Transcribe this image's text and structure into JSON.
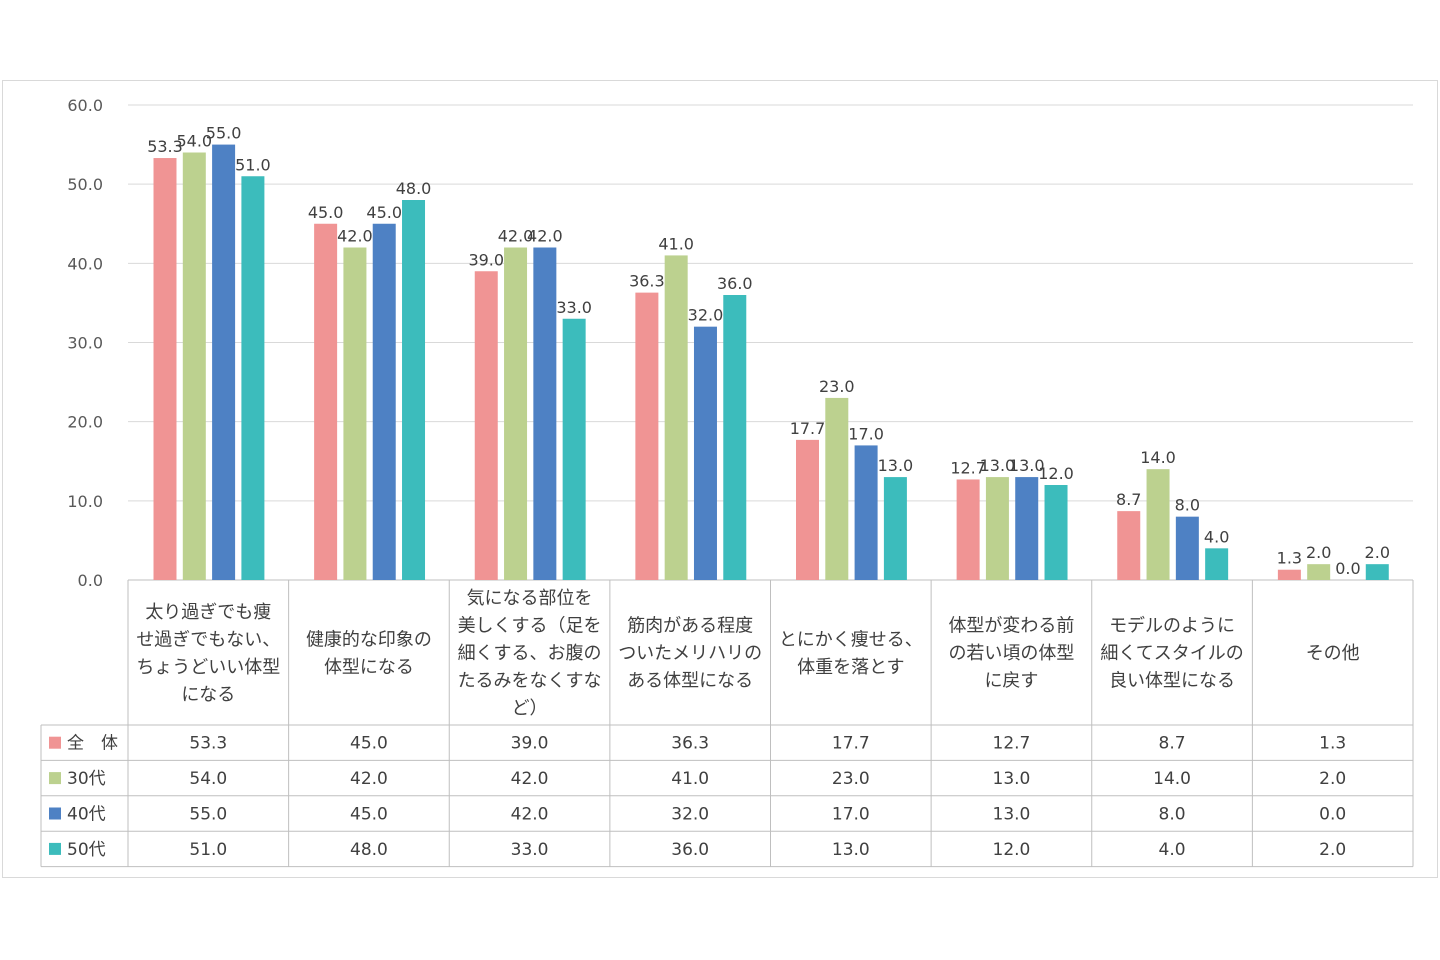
{
  "chart_data": {
    "type": "bar",
    "title": "",
    "xlabel": "",
    "ylabel": "",
    "ylim": [
      0,
      60
    ],
    "yticks": [
      "0.0",
      "10.0",
      "20.0",
      "30.0",
      "40.0",
      "50.0",
      "60.0"
    ],
    "grid": true,
    "legend": "data-table-left",
    "categories": [
      [
        "太り過ぎでも痩",
        "せ過ぎでもない、",
        "ちょうどいい体型",
        "になる"
      ],
      [
        "健康的な印象の",
        "体型になる"
      ],
      [
        "気になる部位を",
        "美しくする（足を",
        "細くする、お腹の",
        "たるみをなくすな",
        "ど）"
      ],
      [
        "筋肉がある程度",
        "ついたメリハリの",
        "ある体型になる"
      ],
      [
        "とにかく痩せる、",
        "体重を落とす"
      ],
      [
        "体型が変わる前",
        "の若い頃の体型",
        "に戻す"
      ],
      [
        "モデルのように",
        "細くてスタイルの",
        "良い体型になる"
      ],
      [
        "その他"
      ]
    ],
    "series": [
      {
        "name": "全　体",
        "color": "#f09494",
        "values": [
          53.3,
          45.0,
          39.0,
          36.3,
          17.7,
          12.7,
          8.7,
          1.3
        ],
        "labels": [
          "53.3",
          "45.0",
          "39.0",
          "36.3",
          "17.7",
          "12.7",
          "8.7",
          "1.3"
        ]
      },
      {
        "name": "30代",
        "color": "#bcd18f",
        "values": [
          54.0,
          42.0,
          42.0,
          41.0,
          23.0,
          13.0,
          14.0,
          2.0
        ],
        "labels": [
          "54.0",
          "42.0",
          "42.0",
          "41.0",
          "23.0",
          "13.0",
          "14.0",
          "2.0"
        ]
      },
      {
        "name": "40代",
        "color": "#4e81c4",
        "values": [
          55.0,
          45.0,
          42.0,
          32.0,
          17.0,
          13.0,
          8.0,
          0.0
        ],
        "labels": [
          "55.0",
          "45.0",
          "42.0",
          "32.0",
          "17.0",
          "13.0",
          "8.0",
          "0.0"
        ]
      },
      {
        "name": "50代",
        "color": "#3cbcbc",
        "values": [
          51.0,
          48.0,
          33.0,
          36.0,
          13.0,
          12.0,
          4.0,
          2.0
        ],
        "labels": [
          "51.0",
          "48.0",
          "33.0",
          "36.0",
          "13.0",
          "12.0",
          "4.0",
          "2.0"
        ]
      }
    ]
  }
}
